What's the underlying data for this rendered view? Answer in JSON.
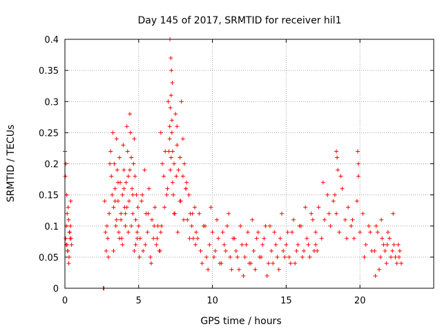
{
  "chart_data": {
    "type": "scatter",
    "title": "Day 145 of 2017, SRMTID for receiver hil1",
    "xlabel": "GPS time / hours",
    "ylabel": "SRMTID / TECUs",
    "xlim": [
      0,
      25
    ],
    "ylim": [
      0,
      0.4
    ],
    "xticks": [
      0,
      5,
      10,
      15,
      20
    ],
    "xtick_labels": [
      "0",
      "5",
      "10",
      "15",
      "20"
    ],
    "yticks": [
      0,
      0.05,
      0.1,
      0.15,
      0.2,
      0.25,
      0.3,
      0.35,
      0.4
    ],
    "ytick_labels": [
      "0",
      "0.05",
      "0.1",
      "0.15",
      "0.2",
      "0.25",
      "0.3",
      "0.35",
      "0.4"
    ],
    "grid": true,
    "legend": "none",
    "marker": "plus",
    "color": "#ff0000",
    "series": [
      {
        "name": "hil1",
        "x": [
          0.0,
          0.05,
          0.08,
          0.12,
          0.15,
          0.2,
          0.25,
          0.3,
          0.35,
          0.4,
          0.45,
          0.03,
          0.1,
          0.18,
          0.22,
          0.28,
          0.33,
          0.38,
          0.06,
          0.14,
          0.26,
          0.42,
          2.6,
          2.62,
          2.65,
          2.7,
          2.75,
          2.8,
          2.85,
          2.9,
          2.95,
          3.0,
          3.05,
          3.1,
          3.15,
          3.2,
          3.25,
          3.3,
          3.35,
          3.4,
          3.45,
          3.5,
          3.55,
          3.6,
          3.65,
          3.7,
          3.75,
          3.8,
          3.85,
          3.9,
          3.95,
          4.0,
          4.05,
          4.1,
          4.15,
          4.2,
          4.25,
          4.3,
          4.35,
          4.4,
          4.45,
          4.5,
          4.55,
          4.6,
          4.65,
          4.7,
          4.75,
          4.8,
          4.85,
          4.9,
          4.95,
          3.3,
          3.5,
          3.7,
          3.9,
          4.1,
          4.3,
          4.5,
          4.7,
          4.9,
          3.4,
          3.6,
          3.8,
          4.0,
          4.2,
          4.4,
          4.6,
          4.8,
          5.0,
          5.1,
          5.2,
          5.3,
          5.4,
          5.5,
          5.6,
          5.7,
          5.8,
          5.9,
          6.0,
          6.1,
          6.2,
          6.3,
          6.4,
          6.5,
          5.05,
          5.25,
          5.45,
          5.65,
          5.85,
          6.05,
          6.25,
          6.45,
          6.5,
          6.6,
          6.7,
          6.8,
          6.9,
          7.0,
          7.1,
          7.2,
          7.3,
          7.4,
          7.5,
          7.6,
          7.7,
          7.8,
          7.9,
          8.0,
          8.1,
          8.2,
          8.3,
          8.4,
          8.5,
          8.6,
          8.7,
          8.8,
          8.9,
          6.55,
          6.75,
          6.95,
          7.05,
          7.15,
          7.25,
          7.35,
          7.45,
          7.55,
          7.65,
          7.85,
          8.05,
          8.25,
          8.45,
          8.65,
          8.85,
          7.12,
          7.18,
          7.22,
          7.28,
          7.15,
          7.2,
          7.25,
          7.1,
          7.3,
          7.4,
          7.6,
          7.8,
          8.0,
          8.2,
          9.0,
          9.2,
          9.4,
          9.6,
          9.8,
          10.0,
          10.2,
          10.4,
          10.6,
          10.8,
          11.0,
          11.2,
          11.4,
          11.6,
          11.8,
          12.0,
          12.2,
          12.4,
          12.6,
          12.8,
          13.0,
          13.2,
          13.4,
          13.6,
          13.8,
          14.0,
          14.2,
          14.4,
          14.6,
          14.8,
          15.0,
          15.2,
          15.4,
          15.6,
          15.8,
          16.0,
          16.2,
          16.4,
          16.6,
          16.8,
          17.0,
          9.1,
          9.5,
          9.9,
          10.3,
          10.7,
          11.1,
          11.5,
          11.9,
          12.3,
          12.7,
          13.1,
          13.5,
          13.9,
          14.3,
          14.7,
          15.1,
          15.5,
          15.9,
          16.3,
          16.7,
          9.3,
          9.7,
          10.1,
          10.5,
          10.9,
          11.3,
          11.7,
          12.1,
          12.5,
          12.9,
          13.3,
          13.7,
          14.1,
          14.5,
          14.9,
          15.3,
          15.7,
          16.1,
          16.5,
          16.9,
          17.0,
          17.2,
          17.4,
          17.6,
          17.8,
          18.0,
          18.2,
          18.4,
          18.6,
          18.8,
          19.0,
          19.2,
          19.4,
          19.6,
          19.8,
          20.0,
          20.2,
          20.4,
          20.6,
          20.8,
          17.1,
          17.5,
          17.9,
          18.3,
          18.5,
          18.7,
          19.1,
          19.5,
          19.9,
          20.3,
          20.7,
          18.4,
          18.45,
          19.85,
          19.9,
          21.0,
          21.2,
          21.4,
          21.6,
          21.8,
          22.0,
          22.2,
          22.4,
          22.6,
          22.8,
          21.1,
          21.3,
          21.5,
          21.7,
          21.9,
          22.1,
          22.3,
          22.5,
          22.7,
          21.05,
          21.45,
          21.85,
          22.25,
          22.65
        ],
        "y": [
          0.22,
          0.08,
          0.07,
          0.15,
          0.12,
          0.06,
          0.11,
          0.09,
          0.08,
          0.14,
          0.07,
          0.18,
          0.1,
          0.06,
          0.13,
          0.05,
          0.09,
          0.1,
          0.2,
          0.07,
          0.04,
          0.08,
          0.0,
          0.0,
          0.0,
          0.14,
          0.09,
          0.06,
          0.1,
          0.08,
          0.05,
          0.12,
          0.2,
          0.22,
          0.18,
          0.15,
          0.25,
          0.13,
          0.2,
          0.16,
          0.1,
          0.24,
          0.19,
          0.14,
          0.09,
          0.21,
          0.17,
          0.12,
          0.08,
          0.15,
          0.23,
          0.19,
          0.13,
          0.1,
          0.17,
          0.26,
          0.22,
          0.18,
          0.14,
          0.28,
          0.25,
          0.21,
          0.16,
          0.12,
          0.2,
          0.24,
          0.18,
          0.11,
          0.15,
          0.09,
          0.13,
          0.06,
          0.11,
          0.08,
          0.07,
          0.12,
          0.09,
          0.1,
          0.06,
          0.08,
          0.14,
          0.17,
          0.11,
          0.16,
          0.13,
          0.19,
          0.15,
          0.07,
          0.1,
          0.08,
          0.14,
          0.06,
          0.19,
          0.12,
          0.09,
          0.16,
          0.05,
          0.11,
          0.08,
          0.13,
          0.07,
          0.1,
          0.06,
          0.09,
          0.05,
          0.15,
          0.07,
          0.12,
          0.04,
          0.1,
          0.08,
          0.06,
          0.25,
          0.2,
          0.18,
          0.22,
          0.15,
          0.3,
          0.26,
          0.21,
          0.17,
          0.12,
          0.28,
          0.23,
          0.19,
          0.14,
          0.3,
          0.24,
          0.2,
          0.16,
          0.11,
          0.15,
          0.12,
          0.1,
          0.08,
          0.13,
          0.09,
          0.1,
          0.13,
          0.16,
          0.22,
          0.19,
          0.25,
          0.15,
          0.12,
          0.18,
          0.09,
          0.14,
          0.11,
          0.17,
          0.08,
          0.12,
          0.07,
          0.4,
          0.37,
          0.35,
          0.33,
          0.29,
          0.31,
          0.27,
          0.24,
          0.22,
          0.2,
          0.26,
          0.21,
          0.18,
          0.16,
          0.08,
          0.06,
          0.1,
          0.05,
          0.07,
          0.09,
          0.06,
          0.08,
          0.04,
          0.07,
          0.1,
          0.05,
          0.08,
          0.06,
          0.03,
          0.07,
          0.05,
          0.09,
          0.04,
          0.06,
          0.08,
          0.05,
          0.07,
          0.1,
          0.04,
          0.06,
          0.09,
          0.05,
          0.08,
          0.06,
          0.07,
          0.05,
          0.09,
          0.04,
          0.07,
          0.1,
          0.06,
          0.08,
          0.05,
          0.11,
          0.07,
          0.12,
          0.1,
          0.13,
          0.11,
          0.09,
          0.12,
          0.08,
          0.1,
          0.07,
          0.11,
          0.09,
          0.08,
          0.1,
          0.07,
          0.12,
          0.09,
          0.11,
          0.1,
          0.13,
          0.12,
          0.04,
          0.03,
          0.05,
          0.04,
          0.06,
          0.03,
          0.05,
          0.02,
          0.04,
          0.03,
          0.05,
          0.02,
          0.04,
          0.03,
          0.05,
          0.04,
          0.06,
          0.05,
          0.07,
          0.06,
          0.09,
          0.13,
          0.08,
          0.11,
          0.15,
          0.1,
          0.14,
          0.12,
          0.09,
          0.16,
          0.11,
          0.13,
          0.1,
          0.08,
          0.14,
          0.09,
          0.12,
          0.07,
          0.1,
          0.06,
          0.06,
          0.17,
          0.12,
          0.15,
          0.19,
          0.18,
          0.08,
          0.11,
          0.2,
          0.05,
          0.09,
          0.22,
          0.21,
          0.22,
          0.18,
          0.06,
          0.09,
          0.05,
          0.07,
          0.04,
          0.08,
          0.06,
          0.05,
          0.07,
          0.04,
          0.1,
          0.03,
          0.08,
          0.06,
          0.09,
          0.05,
          0.07,
          0.04,
          0.06,
          0.02,
          0.11,
          0.07,
          0.12,
          0.05
        ]
      }
    ]
  }
}
